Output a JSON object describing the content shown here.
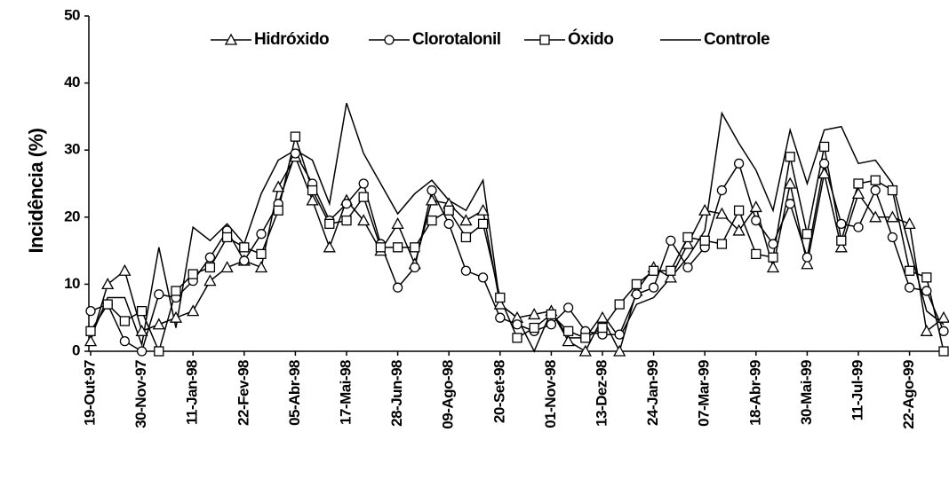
{
  "chart_data": {
    "type": "line",
    "y_label": "Incidência (%)",
    "categories": [
      "19-Out-97",
      null,
      null,
      "30-Nov-97",
      null,
      null,
      "11-Jan-98",
      null,
      null,
      "22-Fev-98",
      null,
      null,
      "05-Abr-98",
      null,
      null,
      "17-Mai-98",
      null,
      null,
      "28-Jun-98",
      null,
      null,
      "09-Ago-98",
      null,
      null,
      "20-Set-98",
      null,
      null,
      "01-Nov-98",
      null,
      null,
      "13-Dez-98",
      null,
      null,
      "24-Jan-99",
      null,
      null,
      "07-Mar-99",
      null,
      null,
      "18-Abr-99",
      null,
      null,
      "30-Mai-99",
      null,
      null,
      "11-Jul-99",
      null,
      null,
      "22-Ago-99",
      null,
      null
    ],
    "ylim": [
      0,
      50
    ],
    "yticks": [
      0,
      10,
      20,
      30,
      40,
      50
    ],
    "series": [
      {
        "name": "Hidróxido",
        "color": "#000000",
        "marker": "triangle",
        "values": [
          1.5,
          10,
          12,
          3,
          4,
          5,
          6,
          10.5,
          12.5,
          13.5,
          12.5,
          24.5,
          29,
          22.5,
          15.5,
          22.5,
          19.5,
          15,
          19,
          13,
          22.5,
          22,
          19.5,
          21,
          7,
          5,
          5.5,
          6,
          1.5,
          0,
          5,
          0,
          9,
          12.5,
          11,
          16,
          21,
          20.5,
          18,
          21.5,
          12.5,
          25,
          13,
          26.5,
          15.5,
          23.5,
          20,
          20,
          19,
          3,
          5
        ]
      },
      {
        "name": "Clorotalonil",
        "color": "#000000",
        "marker": "circle",
        "values": [
          6,
          7,
          1.5,
          0,
          8.5,
          8,
          10.5,
          14,
          18,
          13.5,
          17.5,
          22,
          29.5,
          25,
          19.5,
          22,
          25,
          16,
          9.5,
          12.5,
          24,
          19,
          12,
          11,
          5,
          4,
          3,
          4,
          6.5,
          3,
          2.5,
          2.5,
          8.5,
          9.5,
          16.5,
          12.5,
          15.5,
          24,
          28,
          19.5,
          16,
          22,
          14,
          28,
          19,
          18.5,
          24,
          17,
          9.5,
          9,
          3
        ]
      },
      {
        "name": "Óxido",
        "color": "#000000",
        "marker": "square",
        "values": [
          3,
          7,
          4.5,
          6,
          0,
          9,
          11.5,
          12.5,
          17,
          15.5,
          14.5,
          21,
          32,
          24,
          19,
          19.5,
          23,
          15.5,
          15.5,
          15.5,
          19.5,
          21,
          17,
          19,
          8,
          2,
          3.5,
          5.5,
          3,
          2,
          3.5,
          7,
          10,
          12,
          12,
          17,
          16.5,
          16,
          21,
          14.5,
          14,
          29,
          17.5,
          30.5,
          16.5,
          25,
          25.5,
          24,
          12,
          11,
          0
        ]
      },
      {
        "name": "Controle",
        "color": "#000000",
        "marker": "none",
        "values": [
          2,
          8,
          8,
          1,
          15.5,
          3.5,
          18.5,
          16.5,
          19,
          16,
          23.5,
          28.5,
          30,
          28.5,
          22,
          37,
          29.5,
          25,
          20.5,
          23.5,
          25.5,
          22.5,
          21,
          25.5,
          7,
          5,
          0,
          6,
          2,
          2,
          5.5,
          2,
          7,
          8,
          11,
          14,
          18,
          35.5,
          31,
          27,
          21,
          33,
          25,
          33,
          33.5,
          28,
          28.5,
          25,
          15.5,
          6,
          4
        ]
      }
    ]
  }
}
